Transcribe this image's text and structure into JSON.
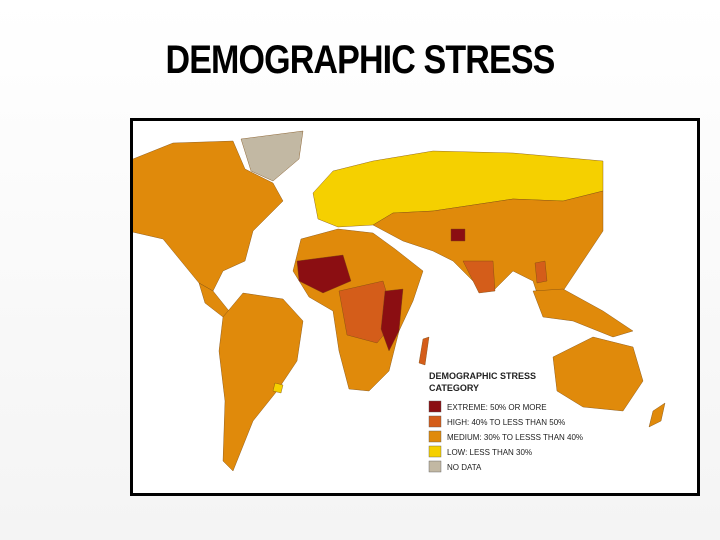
{
  "slide": {
    "title": "DEMOGRAPHIC STRESS"
  },
  "map": {
    "legend": {
      "title": [
        "DEMOGRAPHIC STRESS",
        "CATEGORY"
      ],
      "items": [
        {
          "label": "EXTREME: 50% OR MORE",
          "color": "#8b0e12"
        },
        {
          "label": "HIGH: 40% TO LESS THAN 50%",
          "color": "#d45d1a"
        },
        {
          "label": "MEDIUM: 30% TO LESSS THAN 40%",
          "color": "#e08a0b"
        },
        {
          "label": "LOW: LESS THAN 30%",
          "color": "#f5d000"
        },
        {
          "label": "NO DATA",
          "color": "#c2b8a3"
        }
      ]
    }
  }
}
